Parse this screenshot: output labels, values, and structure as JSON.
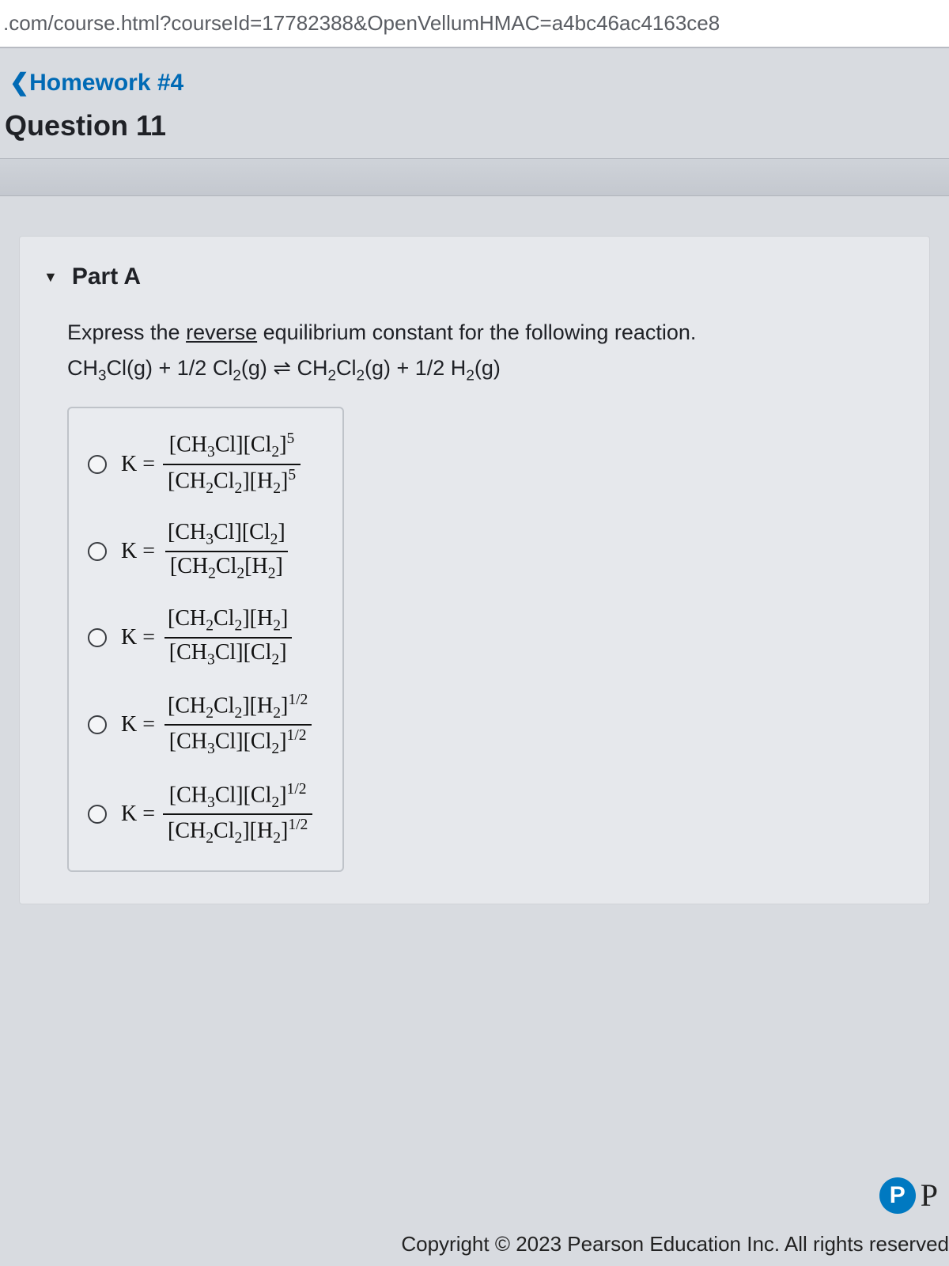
{
  "url_bar": ".com/course.html?courseId=17782388&OpenVellumHMAC=a4bc46ac4163ce8",
  "breadcrumb": {
    "label": "Homework #4"
  },
  "question": {
    "title": "Question 11"
  },
  "part": {
    "label": "Part A",
    "prompt_lead": "Express the ",
    "prompt_underline": "reverse",
    "prompt_tail": " equilibrium constant for the following reaction.",
    "reaction_html": "CH<sub>3</sub>Cl(g) + 1/2 Cl<sub>2</sub>(g) ⇌ CH<sub>2</sub>Cl<sub>2</sub>(g) + 1/2 H<sub>2</sub>(g)",
    "options": [
      {
        "num": "[CH<sub>3</sub>Cl][Cl<sub>2</sub>]<sup>5</sup>",
        "den": "[CH<sub>2</sub>Cl<sub>2</sub>][H<sub>2</sub>]<sup>5</sup>"
      },
      {
        "num": "[CH<sub>3</sub>Cl][Cl<sub>2</sub>]",
        "den": "[CH<sub>2</sub>Cl<sub>2</sub>[H<sub>2</sub>]"
      },
      {
        "num": "[CH<sub>2</sub>Cl<sub>2</sub>][H<sub>2</sub>]",
        "den": "[CH<sub>3</sub>Cl][Cl<sub>2</sub>]"
      },
      {
        "num": "[CH<sub>2</sub>Cl<sub>2</sub>][H<sub>2</sub>]<sup>1/2</sup>",
        "den": "[CH<sub>3</sub>Cl][Cl<sub>2</sub>]<sup>1/2</sup>"
      },
      {
        "num": "[CH<sub>3</sub>Cl][Cl<sub>2</sub>]<sup>1/2</sup>",
        "den": "[CH<sub>2</sub>Cl<sub>2</sub>][H<sub>2</sub>]<sup>1/2</sup>"
      }
    ],
    "k_prefix": "K ="
  },
  "footer": {
    "badge_char": "P",
    "badge_side": "P",
    "copyright": "Copyright © 2023 Pearson Education Inc. All rights reserved"
  },
  "colors": {
    "link": "#006ab5",
    "bg": "#d8dbe0",
    "pane": "#e6e8ec",
    "badge": "#0079c1"
  }
}
